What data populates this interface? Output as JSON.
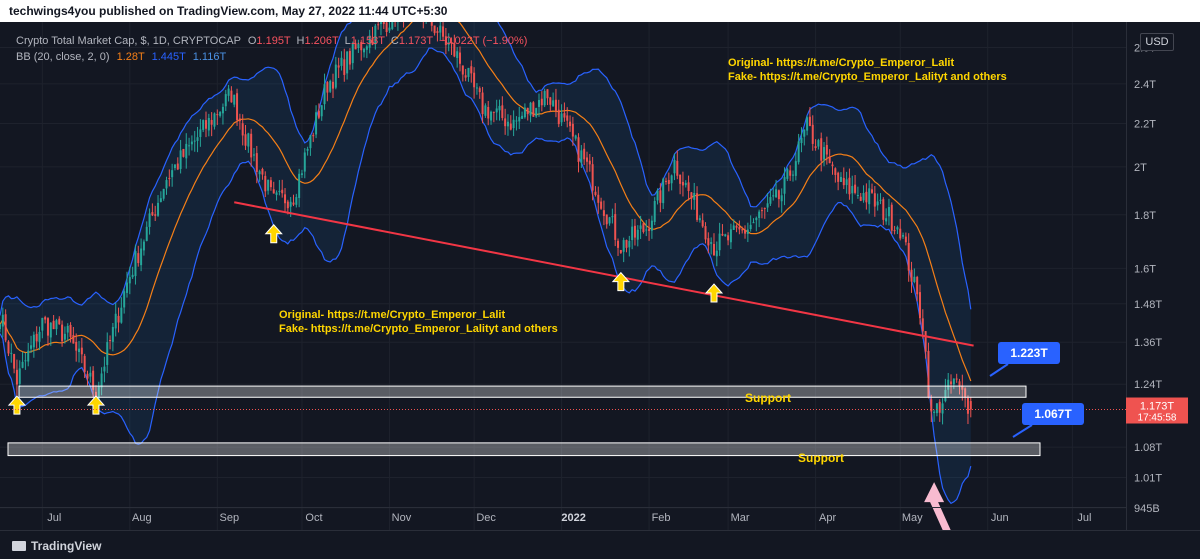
{
  "header": {
    "published_text": "techwings4you published on TradingView.com, May 27, 2022 11:44 UTC+5:30"
  },
  "legend": {
    "title": "Crypto Total Market Cap, $, 1D, CRYPTOCAP",
    "o_label": "O",
    "o_value": "1.195T",
    "h_label": "H",
    "h_value": "1.206T",
    "l_label": "L",
    "l_value": "1.153T",
    "c_label": "C",
    "c_value": "1.173T",
    "change_value": "−0.022T (−1.90%)",
    "bb_label": "BB (20, close, 2, 0)",
    "bb_basis": "1.28T",
    "bb_upper": "1.445T",
    "bb_lower": "1.116T"
  },
  "currency_button": "USD",
  "branding": {
    "logo_text": "TradingView"
  },
  "colors": {
    "background": "#131722",
    "up_candle": "#26a69a",
    "down_candle": "#ef5350",
    "bb_band": "#2962ff",
    "bb_basis": "#f57f17",
    "trendline": "#f23645",
    "annotation_text": "#ffd600",
    "callout": "#2962ff",
    "arrow_up": "#ffd600",
    "arrow_pink": "#f8bbd0"
  },
  "chart_data": {
    "type": "candlestick",
    "symbol": "CRYPTOCAP:TOTAL",
    "timeframe": "1D",
    "scale": "log",
    "x_tick_labels": [
      "Jul",
      "Aug",
      "Sep",
      "Oct",
      "Nov",
      "Dec",
      "2022",
      "Feb",
      "Mar",
      "Apr",
      "May",
      "Jun",
      "Jul"
    ],
    "y_tick_labels": [
      "2.6T",
      "2.4T",
      "2.2T",
      "2T",
      "1.8T",
      "1.6T",
      "1.48T",
      "1.36T",
      "1.24T",
      "1.08T",
      "1.01T",
      "945B"
    ],
    "y_ticks": [
      2.6,
      2.4,
      2.2,
      2.0,
      1.8,
      1.6,
      1.48,
      1.36,
      1.24,
      1.08,
      1.01,
      0.945
    ],
    "ylim": [
      0.9,
      2.75
    ],
    "x_range": [
      "2021-06-16",
      "2022-07-20"
    ],
    "price_series_key_points": [
      {
        "date": "2021-06-16",
        "close": 1.45
      },
      {
        "date": "2021-06-22",
        "close": 1.25
      },
      {
        "date": "2021-07-01",
        "close": 1.42
      },
      {
        "date": "2021-07-10",
        "close": 1.38
      },
      {
        "date": "2021-07-20",
        "close": 1.22
      },
      {
        "date": "2021-07-31",
        "close": 1.55
      },
      {
        "date": "2021-08-14",
        "close": 1.95
      },
      {
        "date": "2021-08-23",
        "close": 2.1
      },
      {
        "date": "2021-09-06",
        "close": 2.35
      },
      {
        "date": "2021-09-12",
        "close": 2.1
      },
      {
        "date": "2021-09-21",
        "close": 1.85
      },
      {
        "date": "2021-09-28",
        "close": 1.88
      },
      {
        "date": "2021-10-10",
        "close": 2.4
      },
      {
        "date": "2021-10-21",
        "close": 2.6
      },
      {
        "date": "2021-11-09",
        "close": 2.9
      },
      {
        "date": "2021-11-25",
        "close": 2.55
      },
      {
        "date": "2021-12-04",
        "close": 2.28
      },
      {
        "date": "2021-12-15",
        "close": 2.2
      },
      {
        "date": "2021-12-27",
        "close": 2.35
      },
      {
        "date": "2022-01-10",
        "close": 2.0
      },
      {
        "date": "2022-01-22",
        "close": 1.68
      },
      {
        "date": "2022-01-31",
        "close": 1.75
      },
      {
        "date": "2022-02-10",
        "close": 2.02
      },
      {
        "date": "2022-02-24",
        "close": 1.68
      },
      {
        "date": "2022-03-07",
        "close": 1.74
      },
      {
        "date": "2022-03-20",
        "close": 1.88
      },
      {
        "date": "2022-03-29",
        "close": 2.18
      },
      {
        "date": "2022-04-10",
        "close": 1.92
      },
      {
        "date": "2022-04-20",
        "close": 1.87
      },
      {
        "date": "2022-05-01",
        "close": 1.75
      },
      {
        "date": "2022-05-09",
        "close": 1.42
      },
      {
        "date": "2022-05-12",
        "close": 1.15
      },
      {
        "date": "2022-05-20",
        "close": 1.25
      },
      {
        "date": "2022-05-26",
        "close": 1.173
      }
    ],
    "bollinger": {
      "period": 20,
      "std_dev": 2,
      "basis_last": 1.28,
      "upper_last": 1.445,
      "lower_last": 1.116
    },
    "trendline": {
      "from": {
        "date": "2021-09-07",
        "value": 1.85
      },
      "to": {
        "date": "2022-05-27",
        "value": 1.35
      }
    },
    "support_zones": [
      {
        "label": "Support",
        "top": 1.235,
        "bottom": 1.205
      },
      {
        "label": "Support",
        "top": 1.09,
        "bottom": 1.06
      }
    ],
    "callouts": [
      "1.223T",
      "1.067T"
    ],
    "last_price_label": "1.173T",
    "countdown_label": "17:45:58",
    "annotations": [
      {
        "line1": "Original- https://t.me/Crypto_Emperor_Lalit",
        "line2": "Fake- https://t.me/Crypto_Emperor_Lalityt and others"
      },
      {
        "line1": "Original- https://t.me/Crypto_Emperor_Lalit",
        "line2": "Fake- https://t.me/Crypto_Emperor_Lalityt and others"
      }
    ]
  }
}
